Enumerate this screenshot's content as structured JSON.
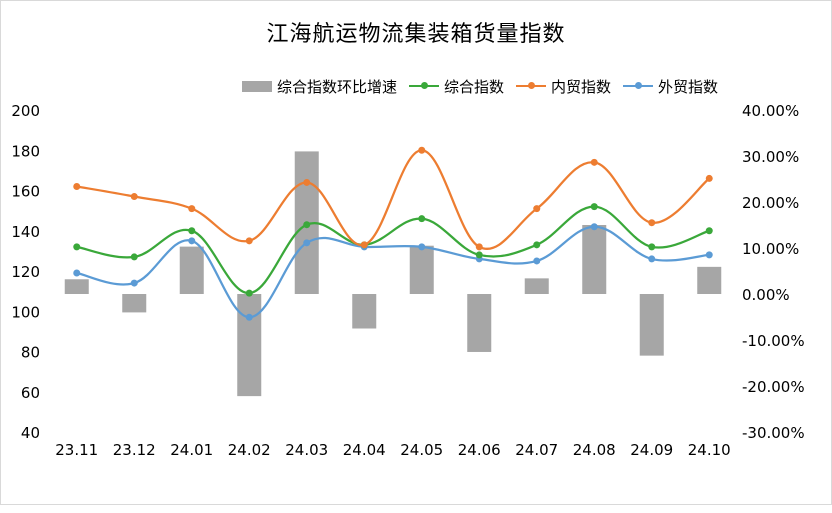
{
  "chart_data": {
    "type": "line",
    "title": "江海航运物流集装箱货量指数",
    "categories": [
      "23.11",
      "23.12",
      "24.01",
      "24.02",
      "24.03",
      "24.04",
      "24.05",
      "24.06",
      "24.07",
      "24.08",
      "24.09",
      "24.10"
    ],
    "y_left": {
      "ticks": [
        200,
        180,
        160,
        140,
        120,
        100,
        80,
        60,
        40
      ],
      "ylim": [
        40,
        200
      ]
    },
    "y_right": {
      "ticks": [
        "40.00%",
        "30.00%",
        "20.00%",
        "10.00%",
        "0.00%",
        "-10.00%",
        "-20.00%",
        "-30.00%"
      ],
      "ylim": [
        -30,
        40
      ]
    },
    "grid": true,
    "legend_position": "top-right",
    "series": [
      {
        "name": "综合指数环比增速",
        "kind": "bar",
        "axis": "right",
        "color": "#a6a6a6",
        "values": [
          3.2,
          -4.0,
          10.3,
          -22.2,
          31.0,
          -7.5,
          10.5,
          -12.6,
          3.4,
          15.0,
          -13.4,
          5.9
        ]
      },
      {
        "name": "综合指数",
        "kind": "line",
        "axis": "left",
        "color": "#3aa83a",
        "values": [
          132,
          127,
          140,
          109,
          143,
          133,
          146,
          128,
          133,
          152,
          132,
          140
        ]
      },
      {
        "name": "内贸指数",
        "kind": "line",
        "axis": "left",
        "color": "#ed7d31",
        "values": [
          162,
          157,
          151,
          135,
          164,
          133,
          180,
          132,
          151,
          174,
          144,
          166
        ]
      },
      {
        "name": "外贸指数",
        "kind": "line",
        "axis": "left",
        "color": "#5b9bd5",
        "values": [
          119,
          114,
          135,
          97,
          134,
          132,
          132,
          126,
          125,
          142,
          126,
          128
        ]
      }
    ]
  }
}
